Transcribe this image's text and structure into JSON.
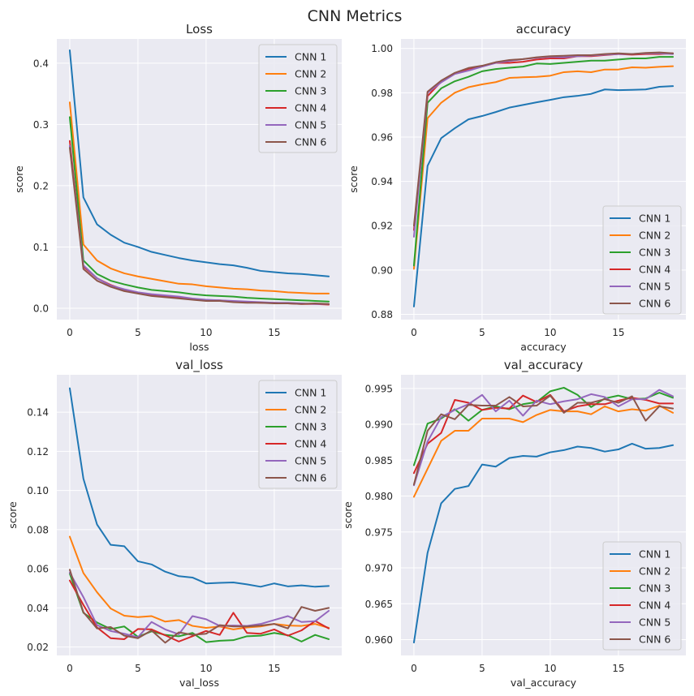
{
  "figure": {
    "title": "CNN Metrics"
  },
  "chart_data": [
    {
      "type": "line",
      "title": "Loss",
      "xlabel": "loss",
      "ylabel": "score",
      "xlim": [
        -0.95,
        19.95
      ],
      "ylim": [
        -0.0185,
        0.4395
      ],
      "xticks": [
        0,
        5,
        10,
        15
      ],
      "yticks": [
        0.0,
        0.1,
        0.2,
        0.3,
        0.4
      ],
      "ytick_decimals": 1,
      "grid": true,
      "legend": "top-right",
      "x": [
        0,
        1,
        2,
        3,
        4,
        5,
        6,
        7,
        8,
        9,
        10,
        11,
        12,
        13,
        14,
        15,
        16,
        17,
        18,
        19
      ],
      "series": [
        {
          "name": "CNN 1",
          "color": "#1f77b4",
          "values": [
            0.421,
            0.181,
            0.137,
            0.12,
            0.107,
            0.1,
            0.092,
            0.087,
            0.082,
            0.078,
            0.075,
            0.072,
            0.07,
            0.066,
            0.061,
            0.059,
            0.057,
            0.056,
            0.054,
            0.052
          ]
        },
        {
          "name": "CNN 2",
          "color": "#ff7f0e",
          "values": [
            0.336,
            0.104,
            0.078,
            0.065,
            0.057,
            0.052,
            0.048,
            0.044,
            0.04,
            0.039,
            0.036,
            0.034,
            0.032,
            0.031,
            0.029,
            0.028,
            0.026,
            0.025,
            0.024,
            0.024
          ]
        },
        {
          "name": "CNN 3",
          "color": "#2ca02c",
          "values": [
            0.312,
            0.078,
            0.056,
            0.045,
            0.039,
            0.034,
            0.03,
            0.028,
            0.026,
            0.023,
            0.021,
            0.02,
            0.019,
            0.017,
            0.016,
            0.015,
            0.014,
            0.013,
            0.012,
            0.011
          ]
        },
        {
          "name": "CNN 4",
          "color": "#d62728",
          "values": [
            0.273,
            0.068,
            0.049,
            0.038,
            0.03,
            0.025,
            0.022,
            0.02,
            0.017,
            0.015,
            0.013,
            0.013,
            0.011,
            0.01,
            0.009,
            0.009,
            0.008,
            0.007,
            0.007,
            0.006
          ]
        },
        {
          "name": "CNN 5",
          "color": "#9467bd",
          "values": [
            0.265,
            0.07,
            0.049,
            0.037,
            0.031,
            0.026,
            0.023,
            0.021,
            0.019,
            0.016,
            0.014,
            0.013,
            0.012,
            0.011,
            0.01,
            0.009,
            0.009,
            0.008,
            0.007,
            0.007
          ]
        },
        {
          "name": "CNN 6",
          "color": "#8c564b",
          "values": [
            0.262,
            0.064,
            0.045,
            0.035,
            0.028,
            0.024,
            0.02,
            0.018,
            0.016,
            0.014,
            0.012,
            0.012,
            0.01,
            0.009,
            0.009,
            0.008,
            0.008,
            0.007,
            0.008,
            0.007
          ]
        }
      ]
    },
    {
      "type": "line",
      "title": "accuracy",
      "xlabel": "accuracy",
      "ylabel": "score",
      "xlim": [
        -0.95,
        19.95
      ],
      "ylim": [
        0.8776,
        1.0043
      ],
      "xticks": [
        0,
        5,
        10,
        15
      ],
      "yticks": [
        0.88,
        0.9,
        0.92,
        0.94,
        0.96,
        0.98,
        1.0
      ],
      "ytick_decimals": 2,
      "grid": true,
      "legend": "bottom-right",
      "x": [
        0,
        1,
        2,
        3,
        4,
        5,
        6,
        7,
        8,
        9,
        10,
        11,
        12,
        13,
        14,
        15,
        16,
        17,
        18,
        19
      ],
      "series": [
        {
          "name": "CNN 1",
          "color": "#1f77b4",
          "values": [
            0.8835,
            0.947,
            0.9595,
            0.964,
            0.968,
            0.9695,
            0.9713,
            0.9733,
            0.9745,
            0.9757,
            0.9768,
            0.978,
            0.9786,
            0.9795,
            0.9815,
            0.9812,
            0.9813,
            0.9815,
            0.9827,
            0.983
          ]
        },
        {
          "name": "CNN 2",
          "color": "#ff7f0e",
          "values": [
            0.9005,
            0.9685,
            0.9755,
            0.98,
            0.9825,
            0.9838,
            0.9848,
            0.9867,
            0.987,
            0.9872,
            0.9877,
            0.9893,
            0.9897,
            0.9893,
            0.9905,
            0.9905,
            0.9915,
            0.9913,
            0.9917,
            0.992
          ]
        },
        {
          "name": "CNN 3",
          "color": "#2ca02c",
          "values": [
            0.902,
            0.9755,
            0.982,
            0.9852,
            0.9872,
            0.9897,
            0.9907,
            0.9913,
            0.9918,
            0.9932,
            0.993,
            0.9935,
            0.994,
            0.9945,
            0.9945,
            0.995,
            0.9955,
            0.9955,
            0.9962,
            0.9962
          ]
        },
        {
          "name": "CNN 4",
          "color": "#d62728",
          "values": [
            0.918,
            0.9785,
            0.985,
            0.9888,
            0.9908,
            0.992,
            0.9935,
            0.9935,
            0.994,
            0.995,
            0.9955,
            0.9955,
            0.9965,
            0.9965,
            0.997,
            0.9975,
            0.9972,
            0.9975,
            0.9975,
            0.9978
          ]
        },
        {
          "name": "CNN 5",
          "color": "#9467bd",
          "values": [
            0.915,
            0.98,
            0.9847,
            0.9885,
            0.99,
            0.9918,
            0.9935,
            0.9943,
            0.9952,
            0.9958,
            0.9962,
            0.996,
            0.9965,
            0.9968,
            0.9972,
            0.9975,
            0.9975,
            0.9978,
            0.9978,
            0.9975
          ]
        },
        {
          "name": "CNN 6",
          "color": "#8c564b",
          "values": [
            0.92,
            0.9805,
            0.9855,
            0.989,
            0.9912,
            0.9922,
            0.9938,
            0.9948,
            0.9952,
            0.996,
            0.9965,
            0.9967,
            0.997,
            0.997,
            0.9975,
            0.9978,
            0.9975,
            0.998,
            0.9982,
            0.9978
          ]
        }
      ]
    },
    {
      "type": "line",
      "title": "val_loss",
      "xlabel": "val_loss",
      "ylabel": "score",
      "xlim": [
        -0.95,
        19.95
      ],
      "ylim": [
        0.0157,
        0.1591
      ],
      "xticks": [
        0,
        5,
        10,
        15
      ],
      "yticks": [
        0.02,
        0.04,
        0.06,
        0.08,
        0.1,
        0.12,
        0.14
      ],
      "ytick_decimals": 2,
      "grid": true,
      "legend": "top-right",
      "x": [
        0,
        1,
        2,
        3,
        4,
        5,
        6,
        7,
        8,
        9,
        10,
        11,
        12,
        13,
        14,
        15,
        16,
        17,
        18,
        19
      ],
      "series": [
        {
          "name": "CNN 1",
          "color": "#1f77b4",
          "values": [
            0.1522,
            0.106,
            0.0826,
            0.0722,
            0.0715,
            0.0638,
            0.0622,
            0.0585,
            0.0562,
            0.0555,
            0.0525,
            0.0528,
            0.053,
            0.052,
            0.0508,
            0.0525,
            0.051,
            0.0515,
            0.0508,
            0.0512
          ]
        },
        {
          "name": "CNN 2",
          "color": "#ff7f0e",
          "values": [
            0.0764,
            0.0578,
            0.048,
            0.0397,
            0.036,
            0.0353,
            0.0358,
            0.033,
            0.0338,
            0.0308,
            0.0298,
            0.0305,
            0.029,
            0.03,
            0.0305,
            0.0318,
            0.031,
            0.0308,
            0.0318,
            0.0298
          ]
        },
        {
          "name": "CNN 3",
          "color": "#2ca02c",
          "values": [
            0.0575,
            0.0375,
            0.0325,
            0.0292,
            0.0305,
            0.0252,
            0.028,
            0.0262,
            0.0255,
            0.0272,
            0.0225,
            0.0232,
            0.0235,
            0.0255,
            0.0258,
            0.0272,
            0.026,
            0.0228,
            0.0262,
            0.024
          ]
        },
        {
          "name": "CNN 4",
          "color": "#d62728",
          "values": [
            0.054,
            0.0415,
            0.03,
            0.0245,
            0.024,
            0.0292,
            0.029,
            0.026,
            0.0228,
            0.0255,
            0.0282,
            0.0262,
            0.0375,
            0.0272,
            0.0268,
            0.029,
            0.0258,
            0.0285,
            0.0333,
            0.0295
          ]
        },
        {
          "name": "CNN 5",
          "color": "#9467bd",
          "values": [
            0.058,
            0.0455,
            0.0312,
            0.0282,
            0.0268,
            0.025,
            0.0328,
            0.029,
            0.0265,
            0.0358,
            0.0342,
            0.0308,
            0.031,
            0.0308,
            0.0318,
            0.0338,
            0.0358,
            0.0328,
            0.0332,
            0.0385
          ]
        },
        {
          "name": "CNN 6",
          "color": "#8c564b",
          "values": [
            0.0595,
            0.0378,
            0.0295,
            0.0302,
            0.0258,
            0.0245,
            0.0285,
            0.0222,
            0.0275,
            0.0262,
            0.0268,
            0.0312,
            0.0305,
            0.0305,
            0.031,
            0.0318,
            0.0295,
            0.0405,
            0.0385,
            0.04
          ]
        }
      ]
    },
    {
      "type": "line",
      "title": "val_accuracy",
      "xlabel": "val_accuracy",
      "ylabel": "score",
      "xlim": [
        -0.95,
        19.95
      ],
      "ylim": [
        0.9578,
        0.9969
      ],
      "xticks": [
        0,
        5,
        10,
        15
      ],
      "yticks": [
        0.96,
        0.965,
        0.97,
        0.975,
        0.98,
        0.985,
        0.99,
        0.995
      ],
      "ytick_decimals": 3,
      "grid": true,
      "legend": "bottom-right",
      "x": [
        0,
        1,
        2,
        3,
        4,
        5,
        6,
        7,
        8,
        9,
        10,
        11,
        12,
        13,
        14,
        15,
        16,
        17,
        18,
        19
      ],
      "series": [
        {
          "name": "CNN 1",
          "color": "#1f77b4",
          "values": [
            0.9596,
            0.9721,
            0.979,
            0.981,
            0.9814,
            0.9844,
            0.9841,
            0.9853,
            0.9856,
            0.9855,
            0.9861,
            0.9864,
            0.9869,
            0.9867,
            0.9862,
            0.9865,
            0.9873,
            0.9866,
            0.9867,
            0.9871
          ]
        },
        {
          "name": "CNN 2",
          "color": "#ff7f0e",
          "values": [
            0.9799,
            0.9838,
            0.9877,
            0.9891,
            0.9891,
            0.9908,
            0.9908,
            0.9908,
            0.9903,
            0.9913,
            0.992,
            0.9918,
            0.9918,
            0.9914,
            0.9925,
            0.9918,
            0.9921,
            0.9919,
            0.9926,
            0.9916
          ]
        },
        {
          "name": "CNN 3",
          "color": "#2ca02c",
          "values": [
            0.9843,
            0.9901,
            0.9908,
            0.9921,
            0.9905,
            0.992,
            0.9925,
            0.9921,
            0.9928,
            0.9931,
            0.9946,
            0.9951,
            0.9941,
            0.9924,
            0.9936,
            0.994,
            0.9935,
            0.9936,
            0.9944,
            0.9937
          ]
        },
        {
          "name": "CNN 4",
          "color": "#d62728",
          "values": [
            0.9832,
            0.9873,
            0.9888,
            0.9934,
            0.993,
            0.992,
            0.9923,
            0.9922,
            0.994,
            0.9931,
            0.9941,
            0.9918,
            0.9925,
            0.9928,
            0.9928,
            0.9933,
            0.9937,
            0.9934,
            0.9929,
            0.9929
          ]
        },
        {
          "name": "CNN 5",
          "color": "#9467bd",
          "values": [
            0.9815,
            0.9876,
            0.991,
            0.992,
            0.9928,
            0.9941,
            0.9918,
            0.9933,
            0.9912,
            0.9933,
            0.9928,
            0.9932,
            0.9935,
            0.9942,
            0.9938,
            0.9925,
            0.9935,
            0.9935,
            0.9948,
            0.9939
          ]
        },
        {
          "name": "CNN 6",
          "color": "#8c564b",
          "values": [
            0.9816,
            0.9891,
            0.9914,
            0.9907,
            0.9927,
            0.9926,
            0.9926,
            0.9938,
            0.9925,
            0.9926,
            0.994,
            0.9916,
            0.993,
            0.993,
            0.9935,
            0.993,
            0.9939,
            0.9905,
            0.9925,
            0.9922
          ]
        }
      ]
    }
  ]
}
